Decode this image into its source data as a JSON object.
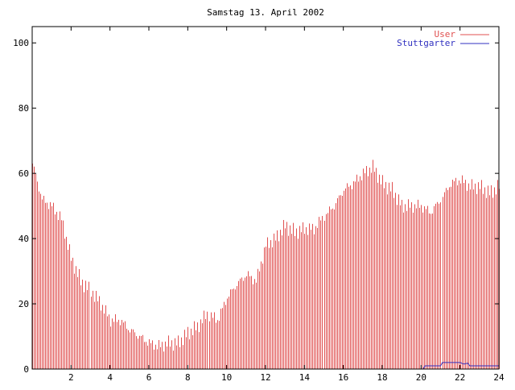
{
  "chart_data": {
    "type": "bar",
    "title": "Samstag 13. April 2002",
    "xlabel": "",
    "ylabel": "",
    "xlim": [
      0,
      24
    ],
    "ylim": [
      0,
      105
    ],
    "x_ticks": [
      2,
      4,
      6,
      8,
      10,
      12,
      14,
      16,
      18,
      20,
      22,
      24
    ],
    "x_tick_labels": [
      "2",
      "4",
      "6",
      "8",
      "10",
      "12",
      "14",
      "16",
      "18",
      "20",
      "22",
      "24"
    ],
    "y_ticks": [
      0,
      20,
      40,
      60,
      80,
      100
    ],
    "y_tick_labels": [
      "0",
      "20",
      "40",
      "60",
      "80",
      "100"
    ],
    "grid": false,
    "legend_position": "top-right",
    "series": [
      {
        "name": "User",
        "color": "#e05050",
        "style": "impulses",
        "x": [
          0,
          0.5,
          1,
          1.5,
          2,
          2.5,
          3,
          3.5,
          4,
          4.5,
          5,
          5.5,
          6,
          6.5,
          7,
          7.5,
          8,
          8.5,
          9,
          9.5,
          10,
          10.5,
          11,
          11.5,
          12,
          12.5,
          13,
          13.5,
          14,
          14.5,
          15,
          15.5,
          16,
          16.5,
          17,
          17.5,
          18,
          18.5,
          19,
          19.5,
          20,
          20.5,
          21,
          21.5,
          22,
          22.5,
          23,
          23.5,
          24
        ],
        "values": [
          63,
          52,
          50,
          46,
          34,
          27,
          24,
          20,
          15,
          15,
          12,
          10,
          8,
          7,
          8,
          8,
          11,
          13,
          17,
          15,
          22,
          26,
          29,
          27,
          38,
          40,
          44,
          42,
          43,
          43,
          47,
          50,
          55,
          57,
          60,
          62,
          57,
          55,
          50,
          50,
          50,
          48,
          52,
          57,
          58,
          56,
          56,
          54,
          56
        ]
      },
      {
        "name": "Stuttgarter",
        "color": "#3030c0",
        "style": "line",
        "x": [
          0,
          5,
          10,
          15,
          19,
          20.1,
          20.2,
          20.8,
          21,
          21.1,
          22,
          22.2,
          22.4,
          22.5,
          24
        ],
        "values": [
          0,
          0,
          0,
          0,
          0,
          0,
          1,
          1,
          1,
          2,
          2,
          1.5,
          1.8,
          1,
          1
        ]
      }
    ]
  }
}
